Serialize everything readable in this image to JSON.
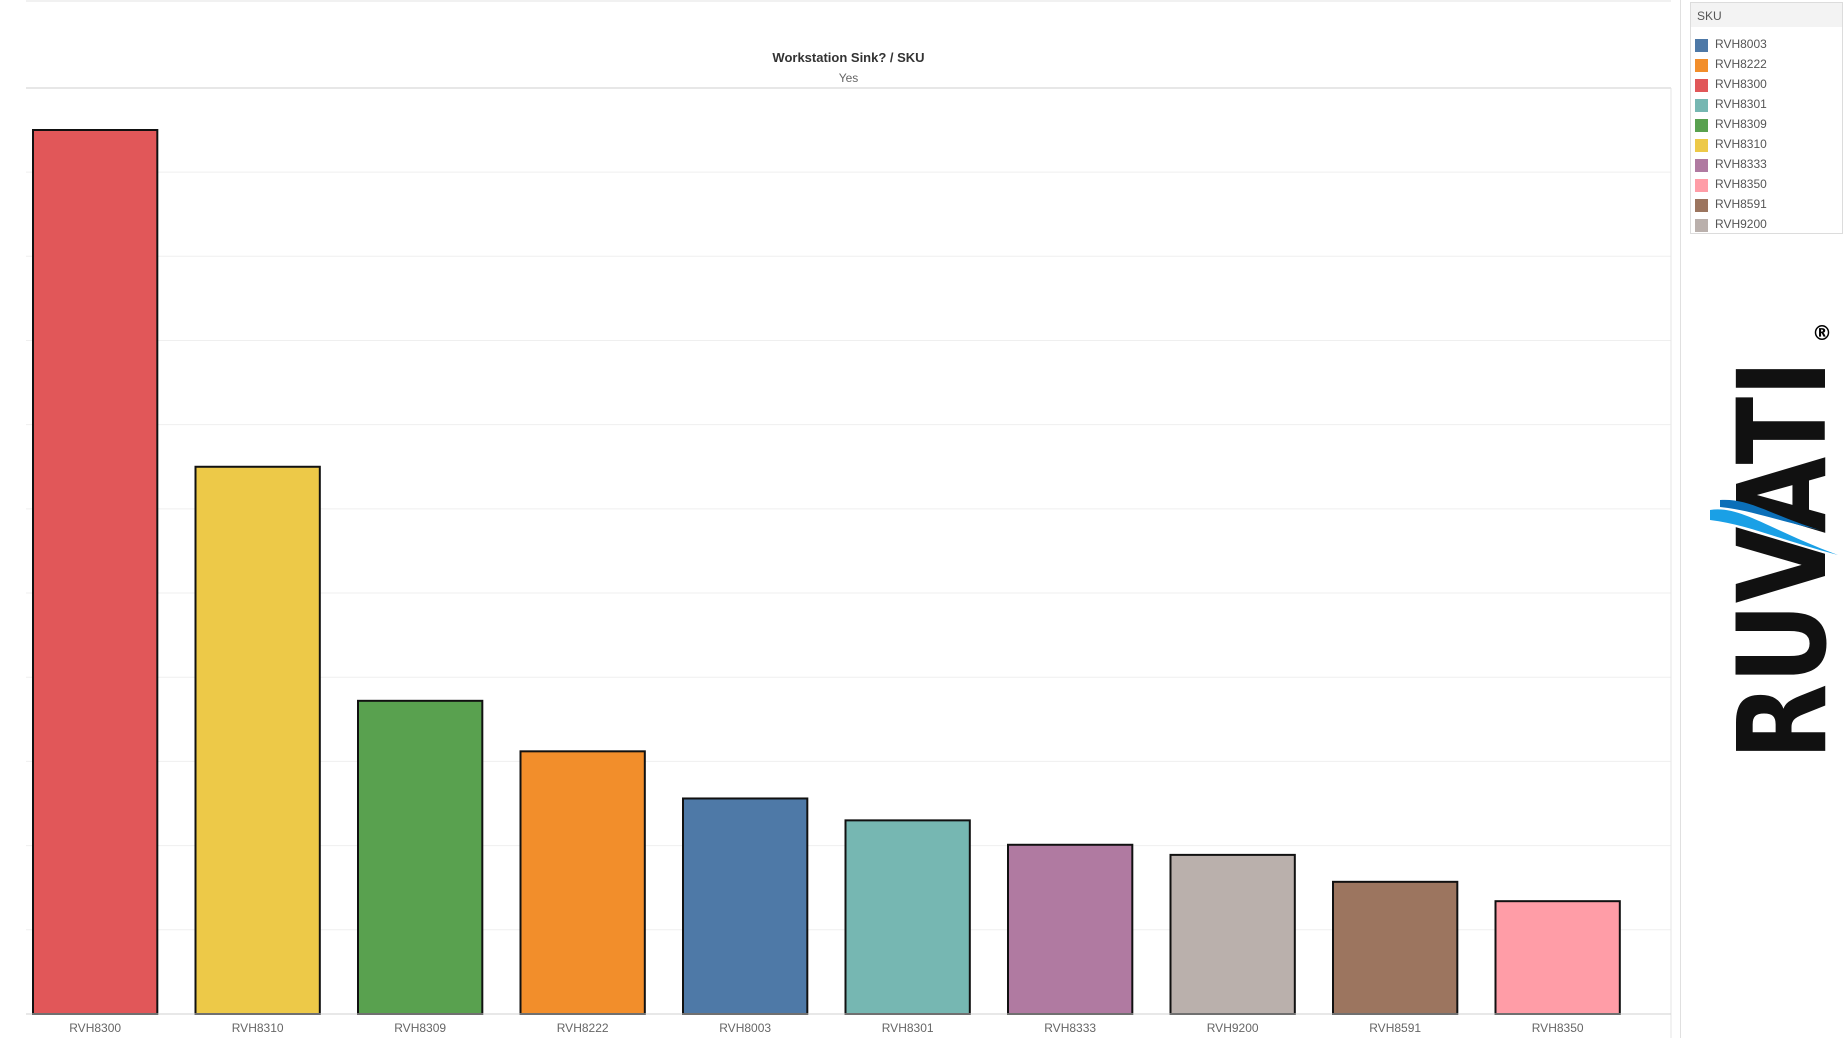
{
  "header": {
    "title": "Workstation Sink? / SKU",
    "subtitle": "Yes"
  },
  "legend": {
    "title": "SKU",
    "items": [
      {
        "label": "RVH8003",
        "color": "#4e79a7"
      },
      {
        "label": "RVH8222",
        "color": "#f28e2b"
      },
      {
        "label": "RVH8300",
        "color": "#e15759"
      },
      {
        "label": "RVH8301",
        "color": "#76b7b2"
      },
      {
        "label": "RVH8309",
        "color": "#59a14f"
      },
      {
        "label": "RVH8310",
        "color": "#edc948"
      },
      {
        "label": "RVH8333",
        "color": "#b07aa1"
      },
      {
        "label": "RVH8350",
        "color": "#ff9da7"
      },
      {
        "label": "RVH8591",
        "color": "#9c755f"
      },
      {
        "label": "RVH9200",
        "color": "#bab0ac"
      }
    ]
  },
  "chart_data": {
    "type": "bar",
    "title": "Workstation Sink? / SKU",
    "subtitle": "Yes",
    "categories": [
      "RVH8300",
      "RVH8310",
      "RVH8309",
      "RVH8222",
      "RVH8003",
      "RVH8301",
      "RVH8333",
      "RVH9200",
      "RVH8591",
      "RVH8350"
    ],
    "values": [
      10.5,
      6.5,
      3.72,
      3.12,
      2.56,
      2.3,
      2.01,
      1.89,
      1.57,
      1.34
    ],
    "colors": [
      "#e15759",
      "#edc948",
      "#59a14f",
      "#f28e2b",
      "#4e79a7",
      "#76b7b2",
      "#b07aa1",
      "#bab0ac",
      "#9c755f",
      "#ff9da7"
    ],
    "ylim": [
      0,
      10.5
    ],
    "grid": true,
    "legend_position": "top-right",
    "xlabel": "",
    "ylabel": ""
  },
  "logo": {
    "text": "RUVATI",
    "mark": "®"
  }
}
